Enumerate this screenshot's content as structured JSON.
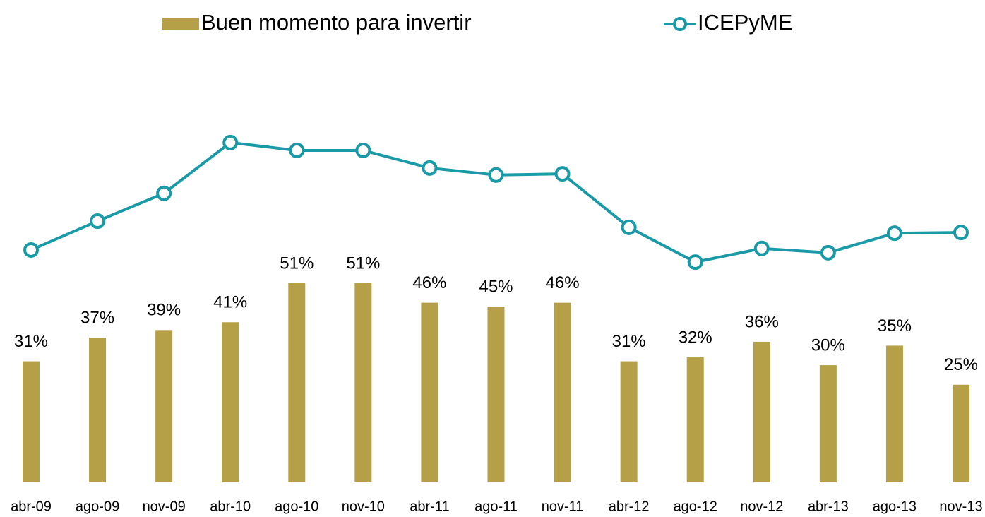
{
  "chart_data": {
    "type": "bar_line",
    "categories": [
      "abr-09",
      "ago-09",
      "nov-09",
      "abr-10",
      "ago-10",
      "nov-10",
      "abr-11",
      "ago-11",
      "nov-11",
      "abr-12",
      "ago-12",
      "nov-12",
      "abr-13",
      "ago-13",
      "nov-13"
    ],
    "series": [
      {
        "name": "Buen momento para invertir",
        "type": "bar",
        "color": "#b59f47",
        "values": [
          31,
          37,
          39,
          41,
          51,
          51,
          46,
          45,
          46,
          31,
          32,
          36,
          30,
          35,
          25
        ],
        "value_labels": [
          "31%",
          "37%",
          "39%",
          "41%",
          "51%",
          "51%",
          "46%",
          "45%",
          "46%",
          "31%",
          "32%",
          "36%",
          "30%",
          "35%",
          "25%"
        ]
      },
      {
        "name": "ICEPyME",
        "type": "line",
        "color": "#1a9aa6",
        "values": [
          59.5,
          66.9,
          74,
          87,
          85,
          85,
          80.5,
          78.7,
          79,
          65.3,
          56.4,
          59.9,
          58.8,
          63.8,
          64
        ]
      }
    ],
    "ylim": [
      0,
      100
    ]
  }
}
